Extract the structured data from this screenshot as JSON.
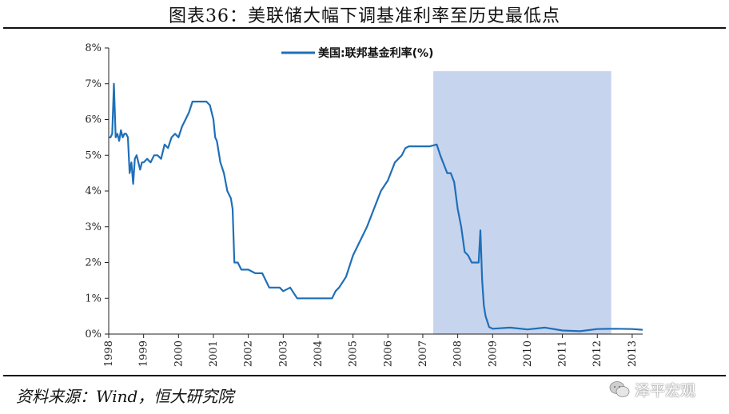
{
  "header": {
    "title": "图表36：美联储大幅下调基准利率至历史最低点"
  },
  "footer": {
    "source": "资料来源：Wind，恒大研究院",
    "watermark": "泽平宏观"
  },
  "colors": {
    "line": "#1f6fb8",
    "shade": "#c7d4ee",
    "axis": "#222222"
  },
  "chart_data": {
    "type": "line",
    "title": "",
    "xlabel": "",
    "ylabel": "",
    "xlim": [
      1998.0,
      2013.3
    ],
    "ylim": [
      0,
      8
    ],
    "yticks": [
      "0%",
      "1%",
      "2%",
      "3%",
      "4%",
      "5%",
      "6%",
      "7%",
      "8%"
    ],
    "xticks": [
      "1998",
      "1999",
      "2000",
      "2001",
      "2002",
      "2003",
      "2004",
      "2005",
      "2006",
      "2007",
      "2008",
      "2009",
      "2010",
      "2011",
      "2012",
      "2013"
    ],
    "legend": {
      "position": "top-center"
    },
    "shaded_region": [
      2007.3,
      2012.4
    ],
    "series": [
      {
        "name": "美国:联邦基金利率(%)",
        "x": [
          1998.0,
          1998.05,
          1998.1,
          1998.15,
          1998.2,
          1998.25,
          1998.3,
          1998.35,
          1998.4,
          1998.45,
          1998.5,
          1998.55,
          1998.6,
          1998.65,
          1998.7,
          1998.75,
          1998.8,
          1998.85,
          1998.9,
          1998.95,
          1999.0,
          1999.1,
          1999.2,
          1999.3,
          1999.4,
          1999.5,
          1999.6,
          1999.7,
          1999.8,
          1999.9,
          2000.0,
          2000.1,
          2000.2,
          2000.3,
          2000.4,
          2000.5,
          2000.6,
          2000.7,
          2000.8,
          2000.9,
          2001.0,
          2001.05,
          2001.1,
          2001.2,
          2001.3,
          2001.4,
          2001.5,
          2001.55,
          2001.6,
          2001.7,
          2001.8,
          2001.9,
          2002.0,
          2002.2,
          2002.4,
          2002.6,
          2002.8,
          2002.9,
          2003.0,
          2003.2,
          2003.4,
          2003.5,
          2003.6,
          2003.8,
          2004.0,
          2004.2,
          2004.4,
          2004.5,
          2004.6,
          2004.8,
          2005.0,
          2005.2,
          2005.4,
          2005.6,
          2005.8,
          2006.0,
          2006.2,
          2006.4,
          2006.5,
          2006.6,
          2006.8,
          2007.0,
          2007.2,
          2007.4,
          2007.5,
          2007.6,
          2007.7,
          2007.8,
          2007.9,
          2008.0,
          2008.1,
          2008.2,
          2008.3,
          2008.4,
          2008.5,
          2008.6,
          2008.65,
          2008.7,
          2008.75,
          2008.8,
          2008.9,
          2009.0,
          2009.5,
          2010.0,
          2010.5,
          2011.0,
          2011.5,
          2012.0,
          2012.5,
          2013.0,
          2013.3
        ],
        "values": [
          5.5,
          5.5,
          5.6,
          7.0,
          5.5,
          5.6,
          5.4,
          5.7,
          5.5,
          5.6,
          5.6,
          5.5,
          4.5,
          4.8,
          4.2,
          4.9,
          5.0,
          4.8,
          4.6,
          4.8,
          4.8,
          4.9,
          4.8,
          5.0,
          5.0,
          4.9,
          5.3,
          5.2,
          5.5,
          5.6,
          5.5,
          5.8,
          6.0,
          6.2,
          6.5,
          6.5,
          6.5,
          6.5,
          6.5,
          6.4,
          6.0,
          5.5,
          5.4,
          4.8,
          4.5,
          4.0,
          3.8,
          3.5,
          2.0,
          2.0,
          1.8,
          1.8,
          1.8,
          1.7,
          1.7,
          1.3,
          1.3,
          1.3,
          1.2,
          1.3,
          1.0,
          1.0,
          1.0,
          1.0,
          1.0,
          1.0,
          1.0,
          1.2,
          1.3,
          1.6,
          2.2,
          2.6,
          3.0,
          3.5,
          4.0,
          4.3,
          4.8,
          5.0,
          5.2,
          5.25,
          5.25,
          5.25,
          5.25,
          5.3,
          5.0,
          4.75,
          4.5,
          4.5,
          4.25,
          3.5,
          3.0,
          2.3,
          2.2,
          2.0,
          2.0,
          2.0,
          2.9,
          1.5,
          0.8,
          0.5,
          0.2,
          0.15,
          0.18,
          0.13,
          0.18,
          0.1,
          0.08,
          0.14,
          0.15,
          0.14,
          0.12
        ]
      }
    ]
  }
}
